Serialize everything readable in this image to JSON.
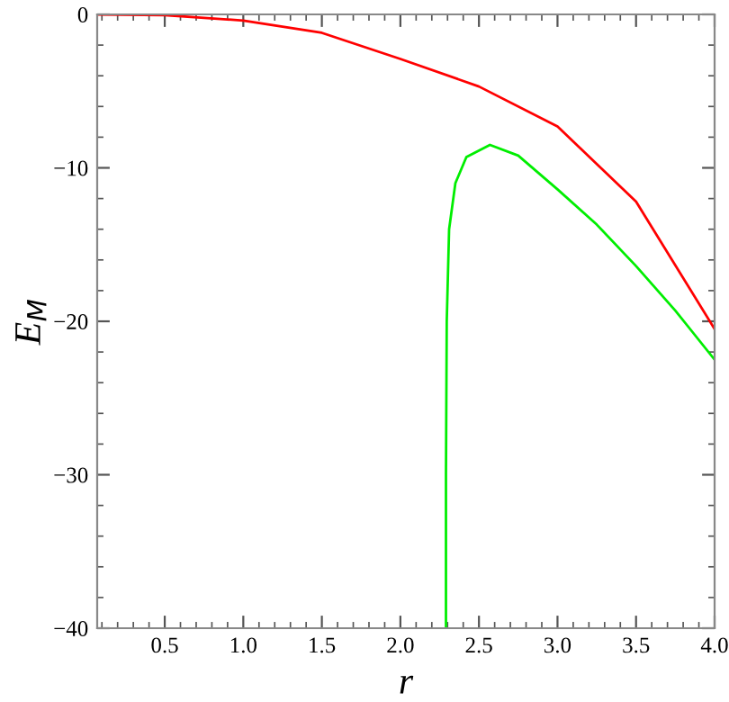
{
  "chart_data": {
    "type": "line",
    "xlabel": "r",
    "ylabel": "E$_{M}$",
    "xlim": [
      0.07,
      4.0
    ],
    "ylim": [
      -40,
      0
    ],
    "xticks": [
      0.5,
      {
        "value": 1,
        "label": "1.0"
      },
      1.5,
      {
        "value": 2,
        "label": "2.0"
      },
      2.5,
      {
        "value": 3,
        "label": "3.0"
      },
      3.5,
      {
        "value": 4,
        "label": "4.0"
      }
    ],
    "yticks": [
      {
        "value": 0,
        "label": "0"
      },
      {
        "value": -10,
        "label": "−10"
      },
      {
        "value": -20,
        "label": "−20"
      },
      {
        "value": -30,
        "label": "−30"
      },
      {
        "value": -40,
        "label": "−40"
      }
    ],
    "grid": false,
    "legend": false,
    "marker": "none",
    "line_style": "solid",
    "series": [
      {
        "color": "#ff0000",
        "x": [
          0.07,
          0.5,
          1.0,
          1.5,
          2.0,
          2.5,
          3.0,
          3.5,
          4.0
        ],
        "values": [
          0,
          -0.05,
          -0.4,
          -1.2,
          -2.9,
          -4.7,
          -7.3,
          -12.2,
          -20.5
        ]
      },
      {
        "color": "#00ee00",
        "x": [
          2.29,
          2.29,
          2.295,
          2.31,
          2.35,
          2.42,
          2.57,
          2.75,
          3.0,
          3.25,
          3.5,
          3.75,
          4.0
        ],
        "values": [
          -40,
          -30,
          -20,
          -14,
          -11,
          -9.3,
          -8.5,
          -9.2,
          -11.4,
          -13.7,
          -16.4,
          -19.3,
          -22.5
        ]
      }
    ]
  }
}
